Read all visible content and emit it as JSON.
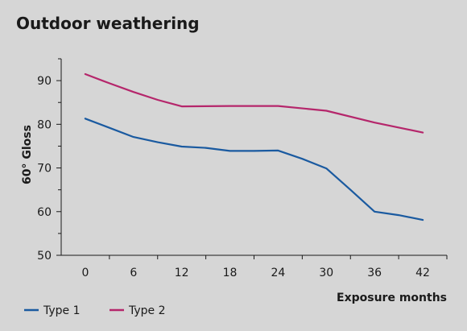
{
  "chart_data": {
    "type": "line",
    "title": "Outdoor weathering",
    "xlabel": "Exposure months",
    "ylabel": "60° Gloss",
    "x": [
      0,
      6,
      12,
      18,
      24,
      30,
      36,
      42
    ],
    "xlim": [
      -3,
      45
    ],
    "ylim": [
      50,
      95
    ],
    "yticks_major": [
      50,
      60,
      70,
      80,
      90
    ],
    "yticks_minor": [
      55,
      65,
      75,
      85,
      95
    ],
    "series": [
      {
        "name": "Type 1",
        "color": "#1a5aa0",
        "points": [
          [
            0,
            81.3
          ],
          [
            3,
            79.2
          ],
          [
            6,
            77.1
          ],
          [
            9,
            75.9
          ],
          [
            12,
            74.9
          ],
          [
            15,
            74.6
          ],
          [
            18,
            73.9
          ],
          [
            21,
            73.9
          ],
          [
            24,
            74.0
          ],
          [
            27,
            72.1
          ],
          [
            30,
            69.9
          ],
          [
            33,
            65.0
          ],
          [
            36,
            60.0
          ],
          [
            39,
            59.2
          ],
          [
            42,
            58.1
          ]
        ]
      },
      {
        "name": "Type 2",
        "color": "#b5266b",
        "points": [
          [
            0,
            91.5
          ],
          [
            3,
            89.4
          ],
          [
            6,
            87.4
          ],
          [
            9,
            85.6
          ],
          [
            12,
            84.1
          ],
          [
            18,
            84.2
          ],
          [
            24,
            84.2
          ],
          [
            30,
            83.1
          ],
          [
            36,
            80.4
          ],
          [
            42,
            78.1
          ]
        ]
      }
    ],
    "legend_position": "bottom-left",
    "grid": false
  }
}
